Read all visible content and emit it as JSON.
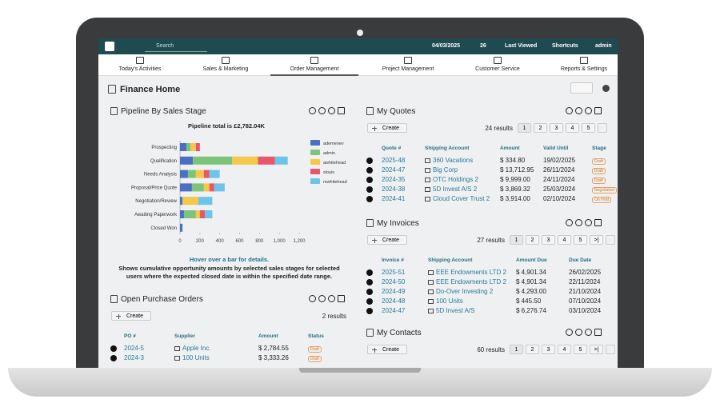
{
  "topbar": {
    "search": "Search",
    "date": "04/03/2025",
    "messages": "26",
    "last_viewed": "Last Viewed",
    "shortcuts": "Shortcuts",
    "user": "admin"
  },
  "nav": [
    "Today's Activities",
    "Sales & Marketing",
    "Order Management",
    "Project Management",
    "Customer Service",
    "Reports & Settings"
  ],
  "page_title": "Finance Home",
  "pipeline": {
    "title": "Pipeline By Sales Stage",
    "chart": {
      "type": "bar",
      "orientation": "horizontal",
      "stacked": true,
      "title": "Pipeline total is £2,782.04K",
      "categories": [
        "Prospecting",
        "Qualification",
        "Needs Analysis",
        "Proposal/Price Quote",
        "Negotiation/Review",
        "Awaiting Paperwork",
        "Closed Won"
      ],
      "series": [
        {
          "name": "ademenev",
          "color": "#4a6fc4",
          "values": [
            65,
            130,
            80,
            120,
            25,
            40,
            25
          ]
        },
        {
          "name": "admin",
          "color": "#7cc47a",
          "values": [
            40,
            395,
            80,
            120,
            0,
            120,
            0
          ]
        },
        {
          "name": "awhitehead",
          "color": "#f5c84a",
          "values": [
            55,
            260,
            80,
            55,
            160,
            40,
            0
          ]
        },
        {
          "name": "slouis",
          "color": "#e8566a",
          "values": [
            40,
            170,
            55,
            50,
            0,
            50,
            0
          ]
        },
        {
          "name": "mwhitehead",
          "color": "#6ec3e8",
          "values": [
            0,
            130,
            105,
            105,
            140,
            75,
            0
          ]
        }
      ],
      "xlim": [
        0,
        1200
      ],
      "xticks": [
        0,
        200,
        400,
        600,
        800,
        {
          "value": 1000,
          "label": "1,000"
        },
        {
          "value": 1200,
          "label": "1,200"
        }
      ]
    },
    "hint": "Hover over a bar for details.",
    "description": "Shows cumulative opportunity amounts by selected sales stages for selected users where the expected closed date is within the specified date range."
  },
  "quotes": {
    "title": "My Quotes",
    "create": "Create",
    "results": "24 results",
    "pages": [
      1,
      2,
      3,
      4,
      5
    ],
    "columns": [
      "Quote #",
      "Shipping Account",
      "Amount",
      "Valid Until",
      "Stage"
    ],
    "rows": [
      [
        "2025-48",
        "360 Vacations",
        "$ 334.80",
        "19/02/2025",
        "Draft"
      ],
      [
        "2024-47",
        "Big Corp",
        "$ 13,712.95",
        "26/11/2024",
        "Draft"
      ],
      [
        "2024-35",
        "OTC Holdings 2",
        "$ 9,999.00",
        "24/11/2024",
        "Draft"
      ],
      [
        "2024-38",
        "5D Invest A/S 2",
        "$ 3,869.32",
        "25/03/2024",
        "Negotiation"
      ],
      [
        "2024-41",
        "Cloud Cover Trust 2",
        "$ 3,914.00",
        "02/10/2024",
        "On Hold"
      ]
    ]
  },
  "invoices": {
    "title": "My Invoices",
    "create": "Create",
    "results": "27 results",
    "pages": [
      1,
      2,
      3,
      4,
      5
    ],
    "last": ">|",
    "columns": [
      "Invoice #",
      "Shipping Account",
      "Amount Due",
      "Due Date"
    ],
    "rows": [
      [
        "2025-51",
        "EEE Endowments LTD 2",
        "$ 4,901.34",
        "26/02/2025"
      ],
      [
        "2024-50",
        "EEE Endowments LTD 2",
        "$ 4,901.34",
        "22/11/2024"
      ],
      [
        "2024-49",
        "Do-Over Investing 2",
        "$ 4,293.00",
        "21/10/2024"
      ],
      [
        "2024-48",
        "100 Units",
        "$ 445.50",
        "07/10/2024"
      ],
      [
        "2024-47",
        "5D Invest A/S",
        "$ 6,276.74",
        "03/10/2024"
      ]
    ]
  },
  "contacts": {
    "title": "My Contacts",
    "create": "Create",
    "results": "60 results",
    "pages": [
      1,
      2,
      3,
      4,
      5
    ],
    "last": ">|"
  },
  "purchase_orders": {
    "title": "Open Purchase Orders",
    "create": "Create",
    "results": "2 results",
    "columns": [
      "PO #",
      "Supplier",
      "Amount",
      "Status"
    ],
    "rows": [
      [
        "2024-5",
        "Apple Inc.",
        "$ 2,784.55",
        "Draft"
      ],
      [
        "2024-3",
        "100 Units",
        "$ 3,333.26",
        "Draft"
      ]
    ]
  }
}
